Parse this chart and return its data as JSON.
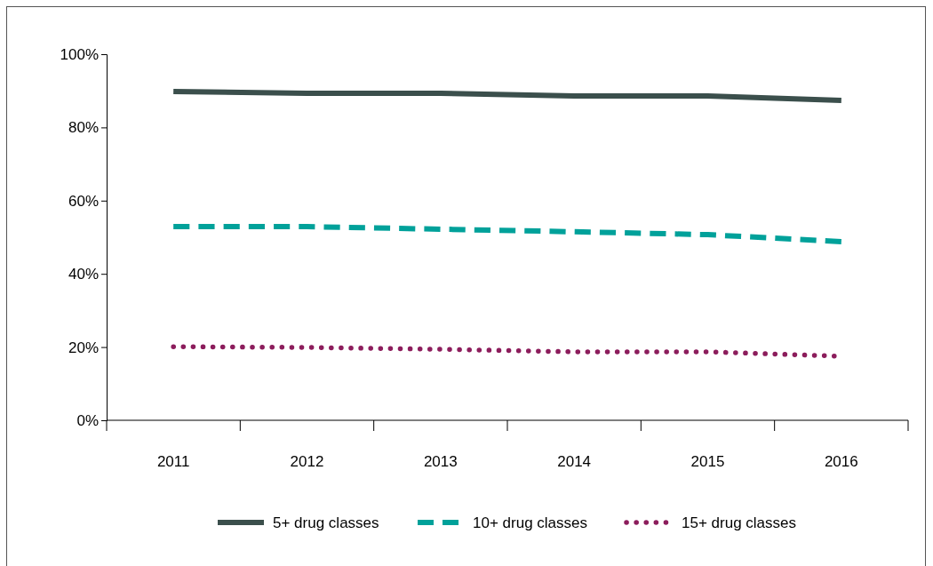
{
  "chart_data": {
    "type": "line",
    "categories": [
      "2011",
      "2012",
      "2013",
      "2014",
      "2015",
      "2016"
    ],
    "series": [
      {
        "name": "5+ drug classes",
        "color": "#3b4f4c",
        "line_style": "solid",
        "values": [
          89.8,
          89.3,
          89.3,
          88.6,
          88.6,
          87.4
        ]
      },
      {
        "name": "10+ drug classes",
        "color": "#00a19a",
        "line_style": "dashed",
        "values": [
          52.9,
          52.9,
          52.2,
          51.5,
          50.7,
          48.8
        ]
      },
      {
        "name": "15+ drug classes",
        "color": "#8c1d5c",
        "line_style": "dotted",
        "values": [
          20.1,
          19.9,
          19.4,
          18.7,
          18.7,
          17.5
        ]
      }
    ],
    "ylim": [
      0,
      100
    ],
    "yticks": [
      {
        "value": 0,
        "label": "0%"
      },
      {
        "value": 20,
        "label": "20%"
      },
      {
        "value": 40,
        "label": "40%"
      },
      {
        "value": 60,
        "label": "60%"
      },
      {
        "value": 80,
        "label": "80%"
      },
      {
        "value": 100,
        "label": "100%"
      }
    ],
    "grid": false,
    "legend": "bottom",
    "marker": "none"
  }
}
